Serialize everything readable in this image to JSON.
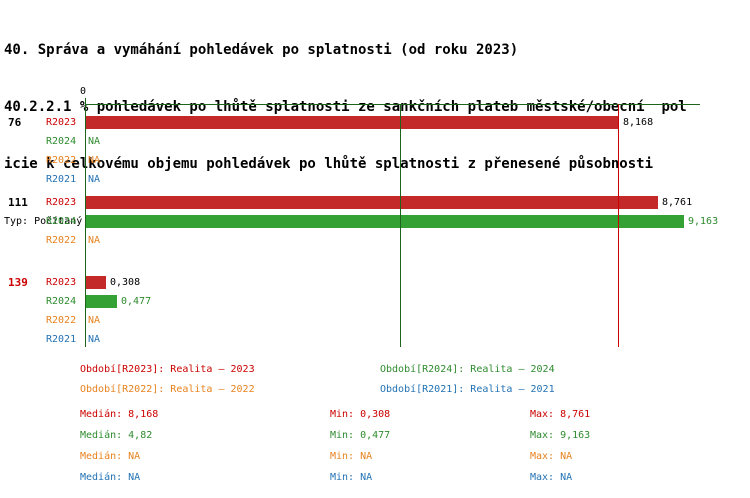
{
  "title": {
    "line1": "40. Správa a vymáhání pohledávek po splatnosti (od roku 2023)",
    "line2": "40.2.2.1 % pohledávek po lhůtě splatnosti ze sankčních plateb městské/obecní  pol",
    "line3": "icie k celkovému objemu pohledávek po lhůtě splatnosti z přenesené působnosti",
    "subtitle": "Typ: Počítaný podle vzorce, Vyhodnocení: Absolutní hodnoty, Průměr: Medián"
  },
  "chart_data": {
    "type": "bar",
    "orientation": "horizontal",
    "x_axis": {
      "min": 0,
      "tick_label": "0",
      "max_est": 9.42
    },
    "axis_color": "#1c641c",
    "series": [
      {
        "id": "R2023",
        "name": "Realita – 2023",
        "color": "#c32929",
        "text_color": "#cc0000",
        "value_label_color": "#000000"
      },
      {
        "id": "R2024",
        "name": "Realita – 2024",
        "color": "#33a133",
        "text_color": "#2e8b2e",
        "value_label_color": "#2e8b2e"
      },
      {
        "id": "R2022",
        "name": "Realita – 2022",
        "color": "#e8821e",
        "text_color": "#e8821e"
      },
      {
        "id": "R2021",
        "name": "Realita – 2021",
        "color": "#2272b4",
        "text_color": "#2272b4"
      }
    ],
    "groups": [
      {
        "label": "76",
        "label_color": "#000000",
        "rows": [
          {
            "series": "R2023",
            "value": 8.168,
            "display": "8,168"
          },
          {
            "series": "R2024",
            "value": null,
            "display": "NA"
          },
          {
            "series": "R2022",
            "value": null,
            "display": "NA"
          },
          {
            "series": "R2021",
            "value": null,
            "display": "NA"
          }
        ]
      },
      {
        "label": "111",
        "label_color": "#000000",
        "rows": [
          {
            "series": "R2023",
            "value": 8.761,
            "display": "8,761"
          },
          {
            "series": "R2024",
            "value": 9.163,
            "display": "9,163"
          },
          {
            "series": "R2022",
            "value": null,
            "display": "NA"
          }
        ]
      },
      {
        "label": "139",
        "label_color": "#cc0000",
        "rows": [
          {
            "series": "R2023",
            "value": 0.308,
            "display": "0,308"
          },
          {
            "series": "R2024",
            "value": 0.477,
            "display": "0,477"
          },
          {
            "series": "R2022",
            "value": null,
            "display": "NA"
          },
          {
            "series": "R2021",
            "value": null,
            "display": "NA"
          }
        ]
      }
    ],
    "median_lines": [
      {
        "series": "R2023",
        "value": 8.168,
        "color": "#cc0000"
      },
      {
        "series": "R2024",
        "value": 4.82,
        "color": "#1c641c"
      }
    ]
  },
  "legend": {
    "items": [
      {
        "label": "Období[R2023]: Realita – 2023",
        "color": "#cc0000"
      },
      {
        "label": "Období[R2024]: Realita – 2024",
        "color": "#2e8b2e"
      },
      {
        "label": "Období[R2022]: Realita – 2022",
        "color": "#e8821e"
      },
      {
        "label": "Období[R2021]: Realita – 2021",
        "color": "#2272b4"
      }
    ]
  },
  "stats": {
    "rows": [
      {
        "median": "Medián: 8,168",
        "min": "Min: 0,308",
        "max": "Max: 8,761",
        "color": "#cc0000"
      },
      {
        "median": "Medián: 4,82",
        "min": "Min: 0,477",
        "max": "Max: 9,163",
        "color": "#2e8b2e"
      },
      {
        "median": "Medián: NA",
        "min": "Min: NA",
        "max": "Max: NA",
        "color": "#e8821e"
      },
      {
        "median": "Medián: NA",
        "min": "Min: NA",
        "max": "Max: NA",
        "color": "#2272b4"
      }
    ]
  }
}
